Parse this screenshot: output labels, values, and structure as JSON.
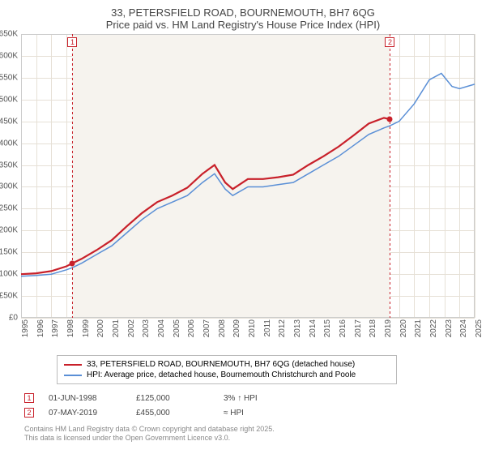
{
  "chart": {
    "type": "line",
    "title_main": "33, PETERSFIELD ROAD, BOURNEMOUTH, BH7 6QG",
    "title_sub": "Price paid vs. HM Land Registry's House Price Index (HPI)",
    "title_fontsize": 13,
    "title_color": "#444444",
    "plot_background_color": "#f6f3ee",
    "plot_background_xspan": [
      1998.4,
      2019.4
    ],
    "margin_left": 46,
    "background_color": "#ffffff",
    "grid_color": "#e6e0d6",
    "axis_color": "#cccccc",
    "tick_fontsize": 10,
    "tick_color": "#555555",
    "xlim": [
      1995,
      2025
    ],
    "ylim": [
      0,
      650000
    ],
    "x_ticks": [
      1995,
      1996,
      1997,
      1998,
      1999,
      2000,
      2001,
      2002,
      2003,
      2004,
      2005,
      2006,
      2007,
      2008,
      2009,
      2010,
      2011,
      2012,
      2013,
      2014,
      2015,
      2016,
      2017,
      2018,
      2019,
      2020,
      2021,
      2022,
      2023,
      2024,
      2025
    ],
    "y_ticks": [
      0,
      50000,
      100000,
      150000,
      200000,
      250000,
      300000,
      350000,
      400000,
      450000,
      500000,
      550000,
      600000,
      650000
    ],
    "y_tick_labels": [
      "£0",
      "£50K",
      "£100K",
      "£150K",
      "£200K",
      "£250K",
      "£300K",
      "£350K",
      "£400K",
      "£450K",
      "£500K",
      "£550K",
      "£600K",
      "£650K"
    ],
    "series": [
      {
        "id": "hpi",
        "label": "HPI: Average price, detached house, Bournemouth Christchurch and Poole",
        "color": "#5a8fd6",
        "line_width": 1.5,
        "data": [
          [
            1995,
            95000
          ],
          [
            1996,
            97000
          ],
          [
            1997,
            100000
          ],
          [
            1998,
            110000
          ],
          [
            1998.4,
            115000
          ],
          [
            1999,
            125000
          ],
          [
            2000,
            145000
          ],
          [
            2001,
            165000
          ],
          [
            2002,
            195000
          ],
          [
            2003,
            225000
          ],
          [
            2004,
            250000
          ],
          [
            2005,
            265000
          ],
          [
            2006,
            280000
          ],
          [
            2007,
            310000
          ],
          [
            2007.8,
            330000
          ],
          [
            2008.5,
            295000
          ],
          [
            2009,
            280000
          ],
          [
            2010,
            300000
          ],
          [
            2011,
            300000
          ],
          [
            2012,
            305000
          ],
          [
            2013,
            310000
          ],
          [
            2014,
            330000
          ],
          [
            2015,
            350000
          ],
          [
            2016,
            370000
          ],
          [
            2017,
            395000
          ],
          [
            2018,
            420000
          ],
          [
            2019,
            435000
          ],
          [
            2019.4,
            440000
          ],
          [
            2020,
            450000
          ],
          [
            2021,
            490000
          ],
          [
            2022,
            545000
          ],
          [
            2022.8,
            560000
          ],
          [
            2023.5,
            530000
          ],
          [
            2024,
            525000
          ],
          [
            2025,
            535000
          ]
        ]
      },
      {
        "id": "property",
        "label": "33, PETERSFIELD ROAD, BOURNEMOUTH, BH7 6QG (detached house)",
        "color": "#c8202a",
        "line_width": 2.2,
        "data": [
          [
            1995,
            100000
          ],
          [
            1996,
            102000
          ],
          [
            1997,
            107000
          ],
          [
            1998,
            118000
          ],
          [
            1998.4,
            125000
          ],
          [
            1999,
            135000
          ],
          [
            2000,
            155000
          ],
          [
            2001,
            178000
          ],
          [
            2002,
            210000
          ],
          [
            2003,
            240000
          ],
          [
            2004,
            265000
          ],
          [
            2005,
            280000
          ],
          [
            2006,
            298000
          ],
          [
            2007,
            330000
          ],
          [
            2007.8,
            350000
          ],
          [
            2008.5,
            310000
          ],
          [
            2009,
            295000
          ],
          [
            2010,
            318000
          ],
          [
            2011,
            318000
          ],
          [
            2012,
            322000
          ],
          [
            2013,
            328000
          ],
          [
            2014,
            350000
          ],
          [
            2015,
            370000
          ],
          [
            2016,
            392000
          ],
          [
            2017,
            418000
          ],
          [
            2018,
            445000
          ],
          [
            2019,
            458000
          ],
          [
            2019.4,
            455000
          ]
        ]
      }
    ],
    "vertical_markers": [
      {
        "id": "1",
        "x": 1998.4,
        "color": "#c8202a",
        "dash": "3,3"
      },
      {
        "id": "2",
        "x": 2019.4,
        "color": "#c8202a",
        "dash": "3,3"
      }
    ],
    "point_markers": [
      {
        "series": "property",
        "x": 1998.4,
        "y": 125000,
        "color": "#c8202a"
      },
      {
        "series": "property",
        "x": 2019.4,
        "y": 455000,
        "color": "#c8202a"
      }
    ]
  },
  "legend": {
    "border_color": "#bbbbbb",
    "fontsize": 10,
    "items": [
      {
        "color": "#c8202a",
        "label": "33, PETERSFIELD ROAD, BOURNEMOUTH, BH7 6QG (detached house)"
      },
      {
        "color": "#5a8fd6",
        "label": "HPI: Average price, detached house, Bournemouth Christchurch and Poole"
      }
    ]
  },
  "sales_table": {
    "fontsize": 10,
    "color": "#444444",
    "marker_border": "#c8202a",
    "rows": [
      {
        "marker": "1",
        "date": "01-JUN-1998",
        "price": "£125,000",
        "delta": "3% ↑ HPI"
      },
      {
        "marker": "2",
        "date": "07-MAY-2019",
        "price": "£455,000",
        "delta": "≈ HPI"
      }
    ]
  },
  "footnote": {
    "line1": "Contains HM Land Registry data © Crown copyright and database right 2025.",
    "line2": "This data is licensed under the Open Government Licence v3.0.",
    "fontsize": 9,
    "color": "#888888"
  }
}
